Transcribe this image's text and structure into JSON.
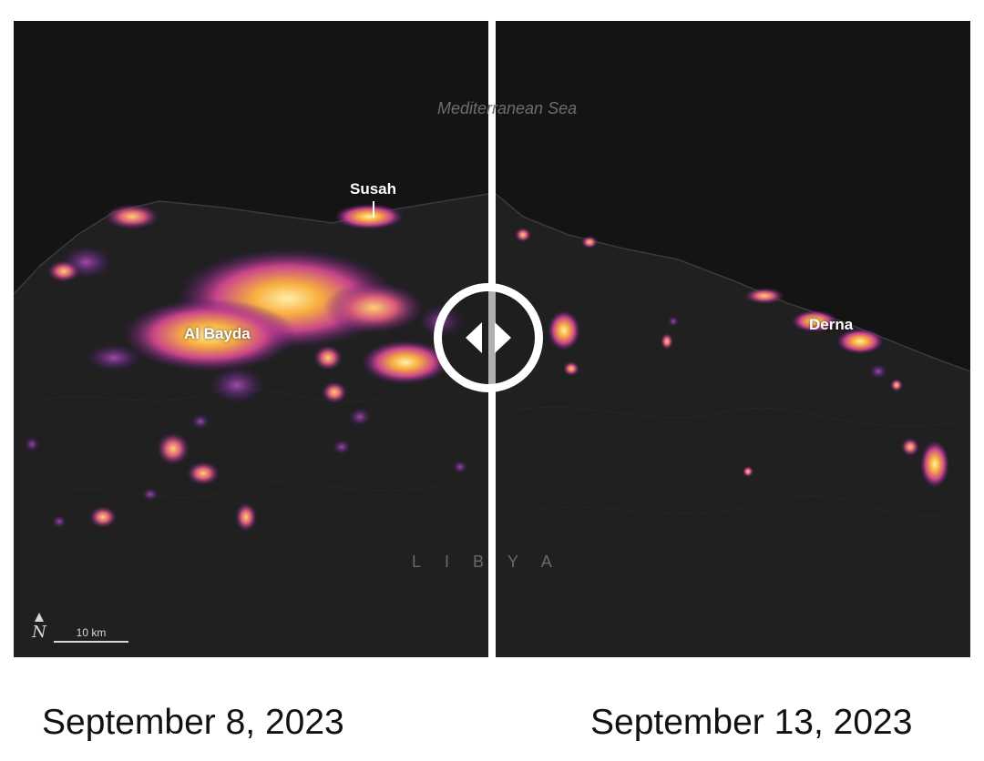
{
  "map": {
    "sea_label": "Mediterranean Sea",
    "country_label": "LIBYA",
    "cities": {
      "susah": "Susah",
      "al_bayda": "Al Bayda",
      "derna": "Derna"
    },
    "scale_label": "10 km",
    "north_symbol": "N",
    "colors": {
      "land": "#1c1c1c",
      "sea": "#141414",
      "glow_hot": "#ffe28a",
      "glow_mid": "#f5a030",
      "glow_cool": "#7a1f8a"
    }
  },
  "comparison": {
    "handle_icon": "left-right-arrows-icon",
    "before_date": "September 8, 2023",
    "after_date": "September 13, 2023"
  }
}
